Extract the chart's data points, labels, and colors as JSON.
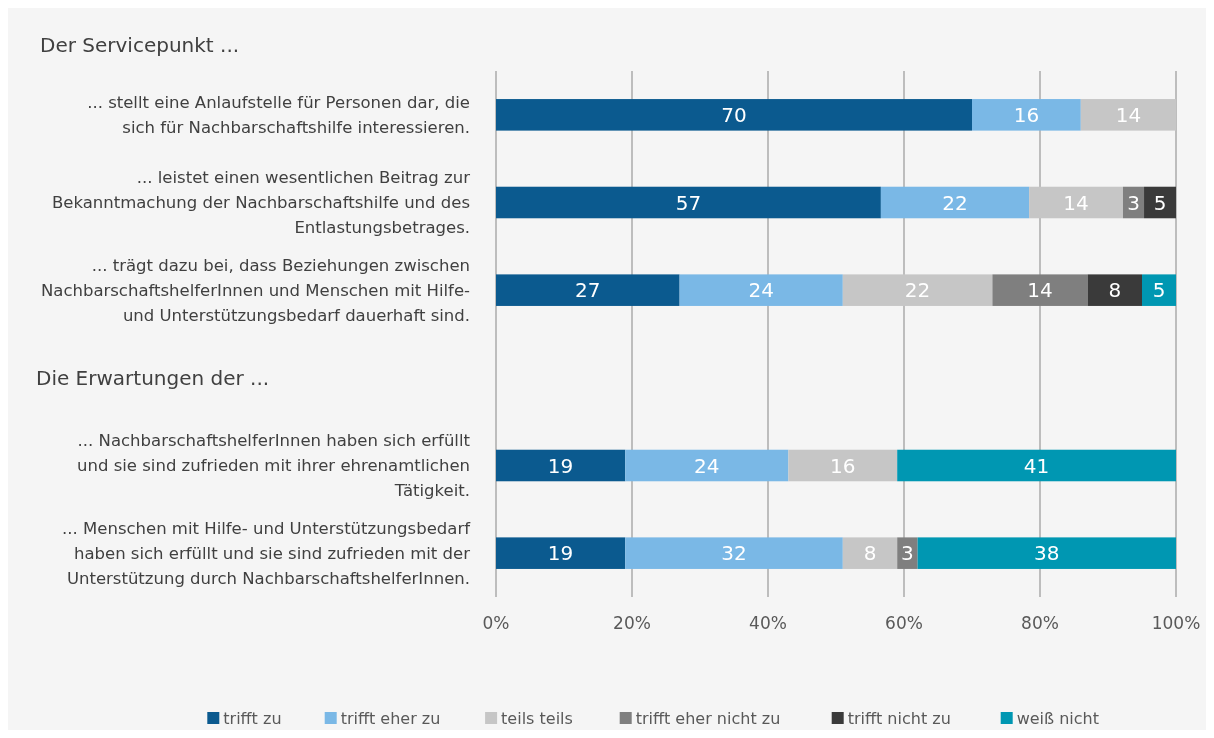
{
  "chart_data": {
    "type": "bar",
    "orientation": "horizontal",
    "stacked": true,
    "title": "Der Servicepunkt ...",
    "annotations": [
      "Die Erwartungen der ..."
    ],
    "categories": [
      "... stellt eine Anlaufstelle für Personen dar, die sich für Nachbarschaftshilfe interessieren.",
      "... leistet einen wesentlichen Beitrag zur Bekanntmachung der Nachbarschaftshilfe und des Entlastungsbetrages.",
      "... trägt dazu bei, dass Beziehungen zwischen NachbarschaftshelferInnen und Menschen mit Hilfe- und Unterstützungsbedarf dauerhaft sind.",
      null,
      "... NachbarschaftshelferInnen haben sich erfüllt und sie sind zufrieden mit ihrer ehrenamtlichen Tätigkeit.",
      "... Menschen mit Hilfe- und Unterstützungsbedarf haben sich erfüllt und sie sind zufrieden mit der Unterstützung durch NachbarschaftshelferInnen."
    ],
    "series": [
      {
        "name": "trifft zu",
        "color": "#0b5a8f",
        "values": [
          70,
          56.6,
          27,
          null,
          19,
          19
        ],
        "value_labels": [
          "70",
          "57",
          "27",
          null,
          "19",
          "19"
        ]
      },
      {
        "name": "trifft eher zu",
        "color": "#7ab8e6",
        "values": [
          16,
          21.8,
          24,
          null,
          24,
          32
        ],
        "value_labels": [
          "16",
          "22",
          "24",
          null,
          "24",
          "32"
        ]
      },
      {
        "name": "teils teils",
        "color": "#c6c6c6",
        "values": [
          14,
          13.8,
          22,
          null,
          16,
          8
        ],
        "value_labels": [
          "14",
          "14",
          "22",
          null,
          "16",
          "8"
        ]
      },
      {
        "name": "trifft eher nicht zu",
        "color": "#7f7f7f",
        "values": [
          null,
          3.1,
          14,
          null,
          null,
          3
        ],
        "value_labels": [
          null,
          "3",
          "14",
          null,
          null,
          "3"
        ]
      },
      {
        "name": "trifft nicht zu",
        "color": "#3a3a3a",
        "values": [
          null,
          4.7,
          8,
          null,
          null,
          null
        ],
        "value_labels": [
          null,
          "5",
          "8",
          null,
          null,
          null
        ]
      },
      {
        "name": "weiß nicht",
        "color": "#0097b2",
        "values": [
          null,
          null,
          5,
          null,
          41,
          38
        ],
        "value_labels": [
          null,
          null,
          "5",
          null,
          "41",
          "38"
        ]
      }
    ],
    "xlim": [
      0,
      100
    ],
    "xticks": [
      {
        "value": 0,
        "label": "0%"
      },
      {
        "value": 20,
        "label": "20%"
      },
      {
        "value": 40,
        "label": "40%"
      },
      {
        "value": 60,
        "label": "60%"
      },
      {
        "value": 80,
        "label": "80%"
      },
      {
        "value": 100,
        "label": "100%"
      }
    ],
    "grid": "x",
    "legend": "bottom"
  }
}
